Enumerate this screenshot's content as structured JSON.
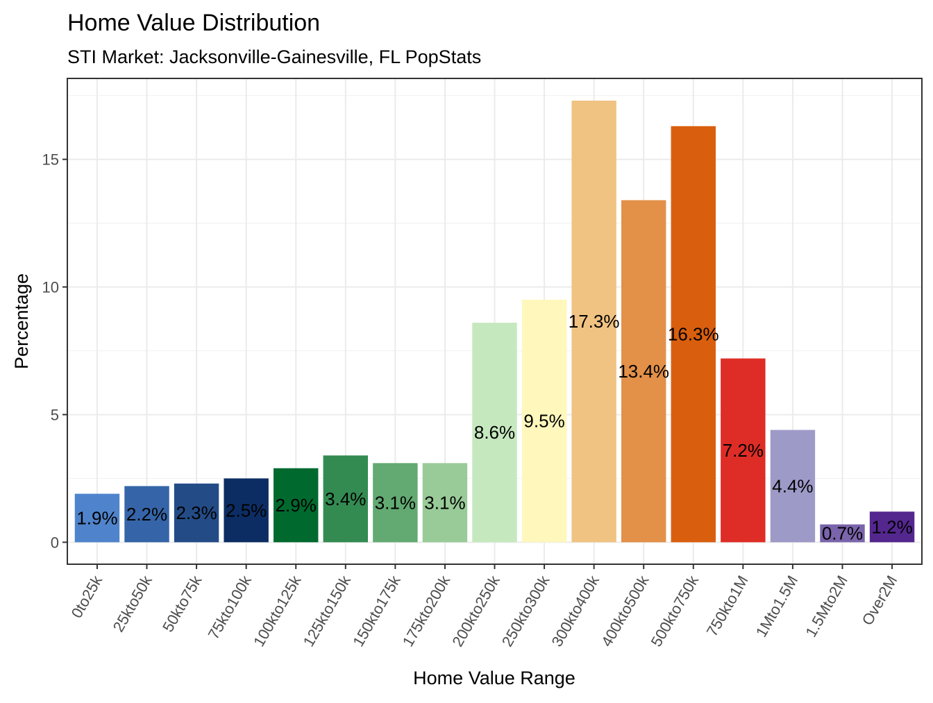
{
  "chart_data": {
    "type": "bar",
    "title": "Home Value Distribution",
    "subtitle": "STI Market: Jacksonville-Gainesville, FL PopStats",
    "xlabel": "Home Value Range",
    "ylabel": "Percentage",
    "ylim": [
      -0.86,
      18.17
    ],
    "yticks": [
      0,
      5,
      10,
      15
    ],
    "grid": true,
    "legend": "none",
    "categories": [
      "0to25k",
      "25kto50k",
      "50kto75k",
      "75kto100k",
      "100kto125k",
      "125kto150k",
      "150kto175k",
      "175kto200k",
      "200kto250k",
      "250kto300k",
      "300kto400k",
      "400kto500k",
      "500kto750k",
      "750kto1M",
      "1Mto1.5M",
      "1.5Mto2M",
      "Over2M"
    ],
    "values": [
      1.9,
      2.2,
      2.3,
      2.5,
      2.9,
      3.4,
      3.1,
      3.1,
      8.6,
      9.5,
      17.3,
      13.4,
      16.3,
      7.2,
      4.4,
      0.7,
      1.2
    ],
    "data_labels": [
      "1.9%",
      "2.2%",
      "2.3%",
      "2.5%",
      "2.9%",
      "3.4%",
      "3.1%",
      "3.1%",
      "8.6%",
      "9.5%",
      "17.3%",
      "13.4%",
      "16.3%",
      "7.2%",
      "4.4%",
      "0.7%",
      "1.2%"
    ],
    "colors": [
      "#4f84cc",
      "#3565a8",
      "#234c87",
      "#0c2d63",
      "#006a2e",
      "#338b51",
      "#62aa72",
      "#98cb98",
      "#c6e8bf",
      "#fff7bc",
      "#f0c382",
      "#e39048",
      "#d95f0e",
      "#de2d26",
      "#9e9ac8",
      "#7a64ab",
      "#54278f"
    ]
  }
}
